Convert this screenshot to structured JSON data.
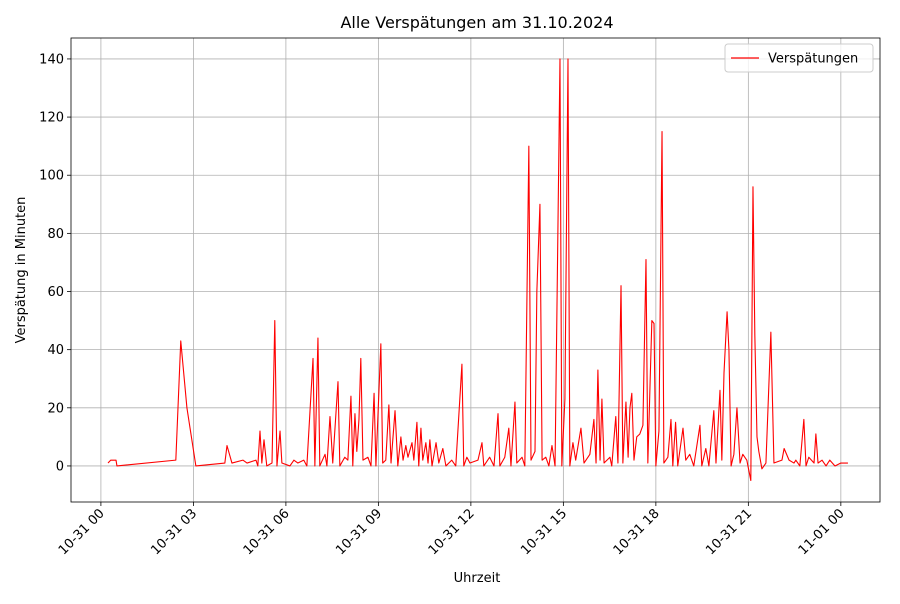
{
  "chart_data": {
    "type": "line",
    "title": "Alle Verspätungen am 31.10.2024",
    "x_label": "Uhrzeit",
    "y_label": "Verspätung in Minuten",
    "x": [
      0.23,
      0.32,
      0.49,
      0.52,
      2.43,
      2.59,
      2.79,
      3.08,
      4.02,
      4.09,
      4.25,
      4.61,
      4.74,
      5.03,
      5.09,
      5.16,
      5.22,
      5.29,
      5.38,
      5.55,
      5.64,
      5.71,
      5.81,
      5.87,
      6.13,
      6.26,
      6.39,
      6.58,
      6.68,
      6.88,
      6.94,
      7.04,
      7.1,
      7.27,
      7.33,
      7.43,
      7.52,
      7.69,
      7.75,
      7.91,
      8.01,
      8.11,
      8.17,
      8.24,
      8.3,
      8.37,
      8.43,
      8.5,
      8.66,
      8.76,
      8.86,
      8.92,
      9.08,
      9.14,
      9.24,
      9.34,
      9.41,
      9.54,
      9.63,
      9.73,
      9.8,
      9.89,
      9.96,
      10.09,
      10.15,
      10.25,
      10.31,
      10.38,
      10.44,
      10.54,
      10.61,
      10.67,
      10.74,
      10.87,
      10.96,
      11.09,
      11.19,
      11.38,
      11.51,
      11.71,
      11.77,
      11.87,
      11.97,
      12.23,
      12.36,
      12.42,
      12.61,
      12.75,
      12.88,
      12.94,
      13.1,
      13.23,
      13.3,
      13.43,
      13.49,
      13.66,
      13.75,
      13.88,
      13.95,
      14.08,
      14.14,
      14.24,
      14.31,
      14.43,
      14.53,
      14.63,
      14.73,
      14.89,
      14.95,
      15.05,
      15.15,
      15.21,
      15.31,
      15.4,
      15.57,
      15.67,
      15.86,
      15.99,
      16.06,
      16.12,
      16.19,
      16.25,
      16.32,
      16.51,
      16.57,
      16.7,
      16.77,
      16.87,
      16.93,
      17.03,
      17.1,
      17.16,
      17.22,
      17.29,
      17.38,
      17.48,
      17.58,
      17.68,
      17.74,
      17.87,
      17.94,
      18.0,
      18.1,
      18.2,
      18.26,
      18.39,
      18.49,
      18.55,
      18.64,
      18.71,
      18.88,
      18.97,
      19.1,
      19.23,
      19.43,
      19.49,
      19.62,
      19.72,
      19.88,
      19.95,
      20.08,
      20.14,
      20.21,
      20.31,
      20.37,
      20.44,
      20.53,
      20.63,
      20.73,
      20.82,
      20.95,
      21.08,
      21.15,
      21.21,
      21.28,
      21.34,
      21.44,
      21.57,
      21.73,
      21.83,
      22.09,
      22.16,
      22.32,
      22.48,
      22.54,
      22.67,
      22.8,
      22.87,
      22.96,
      23.13,
      23.19,
      23.26,
      23.39,
      23.52,
      23.64,
      23.81,
      24.0,
      24.23
    ],
    "series": [
      {
        "name": "Verspätungen",
        "color": "#ff0000",
        "values": [
          1,
          2,
          2,
          0,
          2,
          43,
          20,
          0,
          1,
          7,
          1,
          2,
          1,
          2,
          0,
          12,
          1,
          9,
          0,
          1,
          50,
          0,
          12,
          1,
          0,
          2,
          1,
          2,
          0,
          37,
          0,
          44,
          0,
          4,
          0,
          17,
          1,
          29,
          0,
          3,
          2,
          24,
          0,
          18,
          5,
          16,
          37,
          2,
          3,
          0,
          25,
          0,
          42,
          1,
          2,
          21,
          1,
          19,
          0,
          10,
          2,
          7,
          3,
          8,
          2,
          15,
          0,
          13,
          2,
          8,
          1,
          9,
          0,
          8,
          1,
          6,
          0,
          2,
          0,
          35,
          0,
          3,
          1,
          2,
          8,
          0,
          3,
          0,
          18,
          0,
          3,
          13,
          0,
          22,
          1,
          3,
          0,
          110,
          2,
          5,
          60,
          90,
          2,
          3,
          0,
          7,
          0,
          140,
          0,
          23,
          140,
          0,
          8,
          2,
          13,
          1,
          4,
          16,
          1,
          33,
          2,
          23,
          1,
          3,
          0,
          17,
          1,
          62,
          1,
          22,
          3,
          20,
          25,
          2,
          10,
          11,
          14,
          71,
          1,
          50,
          49,
          0,
          12,
          115,
          1,
          3,
          16,
          0,
          15,
          0,
          13,
          2,
          4,
          0,
          14,
          0,
          6,
          0,
          19,
          1,
          26,
          2,
          32,
          53,
          40,
          0,
          4,
          20,
          1,
          4,
          2,
          -5,
          96,
          45,
          10,
          5,
          -1,
          1,
          46,
          1,
          2,
          6,
          2,
          1,
          2,
          0,
          16,
          0,
          3,
          1,
          11,
          1,
          2,
          0,
          2,
          0,
          1,
          1
        ]
      }
    ],
    "xlim": [
      -0.97,
      25.27
    ],
    "ylim": [
      -12.4,
      147.2
    ],
    "xticks": [
      {
        "value": 0,
        "label": "10-31 00"
      },
      {
        "value": 3,
        "label": "10-31 03"
      },
      {
        "value": 6,
        "label": "10-31 06"
      },
      {
        "value": 9,
        "label": "10-31 09"
      },
      {
        "value": 12,
        "label": "10-31 12"
      },
      {
        "value": 15,
        "label": "10-31 15"
      },
      {
        "value": 18,
        "label": "10-31 18"
      },
      {
        "value": 21,
        "label": "10-31 21"
      },
      {
        "value": 24,
        "label": "11-01 00"
      }
    ],
    "yticks": [
      0,
      20,
      40,
      60,
      80,
      100,
      120,
      140
    ],
    "grid": true,
    "legend": "upper right"
  }
}
